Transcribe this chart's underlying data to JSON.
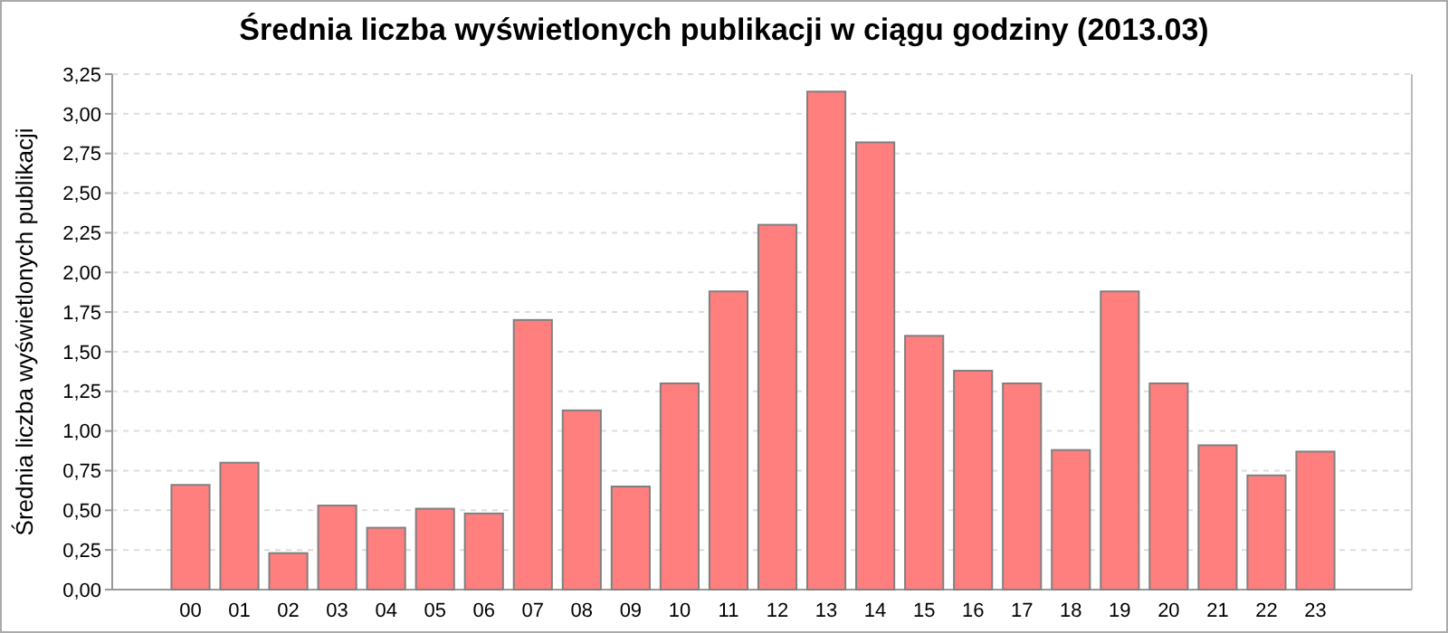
{
  "chart_data": {
    "type": "bar",
    "title": "Średnia liczba wyświetlonych publikacji w ciągu godziny (2013.03)",
    "ylabel": "Średnia liczba wyświetlonych publikacji",
    "categories": [
      "00",
      "01",
      "02",
      "03",
      "04",
      "05",
      "06",
      "07",
      "08",
      "09",
      "10",
      "11",
      "12",
      "13",
      "14",
      "15",
      "16",
      "17",
      "18",
      "19",
      "20",
      "21",
      "22",
      "23"
    ],
    "values": [
      0.66,
      0.8,
      0.23,
      0.53,
      0.39,
      0.51,
      0.48,
      1.7,
      1.13,
      0.65,
      1.3,
      1.88,
      2.3,
      3.14,
      2.82,
      1.6,
      1.38,
      1.3,
      0.88,
      1.88,
      1.3,
      0.91,
      0.72,
      0.87
    ],
    "color": "#ff7f7f",
    "ylim": [
      0,
      3.25
    ],
    "yticks": [
      {
        "value": 0,
        "label": "0,00"
      },
      {
        "value": 0.25,
        "label": "0,25"
      },
      {
        "value": 0.5,
        "label": "0,50"
      },
      {
        "value": 0.75,
        "label": "0,75"
      },
      {
        "value": 1,
        "label": "1,00"
      },
      {
        "value": 1.25,
        "label": "1,25"
      },
      {
        "value": 1.5,
        "label": "1,50"
      },
      {
        "value": 1.75,
        "label": "1,75"
      },
      {
        "value": 2,
        "label": "2,00"
      },
      {
        "value": 2.25,
        "label": "2,25"
      },
      {
        "value": 2.5,
        "label": "2,50"
      },
      {
        "value": 2.75,
        "label": "2,75"
      },
      {
        "value": 3,
        "label": "3,00"
      },
      {
        "value": 3.25,
        "label": "3,25"
      }
    ],
    "grid": "y"
  }
}
